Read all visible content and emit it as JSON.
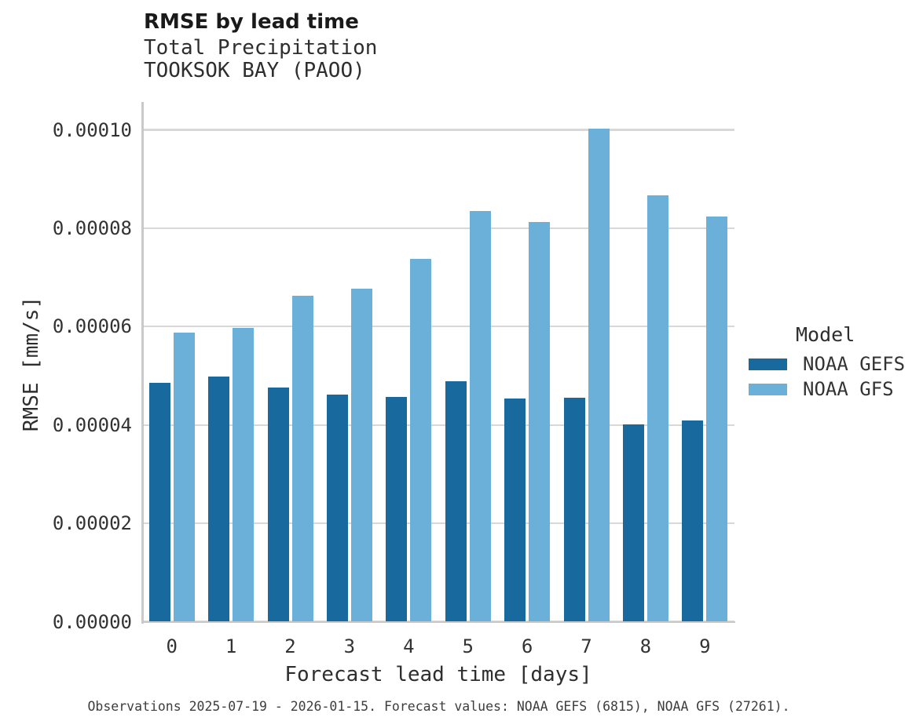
{
  "header": {
    "title": "RMSE by lead time",
    "subtitle_variable": "Total Precipitation",
    "subtitle_station": "TOOKSOK BAY (PAOO)"
  },
  "legend": {
    "title": "Model",
    "items": [
      {
        "label": "NOAA GEFS",
        "color": "#186a9e"
      },
      {
        "label": "NOAA GFS",
        "color": "#6bb0d9"
      }
    ]
  },
  "caption": "Observations 2025-07-19 - 2026-01-15. Forecast values: NOAA GEFS (6815), NOAA GFS (27261).",
  "colors": {
    "gefs_bar": "#186a9e",
    "gfs_bar": "#6bb0d9",
    "gridline": "#d8d8d8",
    "spine": "#c9c9c9",
    "title_text": "#1a1a1a",
    "text": "#333333",
    "caption_text": "#3d3d3d"
  },
  "chart_data": {
    "type": "bar",
    "title": "RMSE by lead time",
    "subtitle": [
      "Total Precipitation",
      "TOOKSOK BAY (PAOO)"
    ],
    "categories": [
      "0",
      "1",
      "2",
      "3",
      "4",
      "5",
      "6",
      "7",
      "8",
      "9"
    ],
    "series": [
      {
        "name": "NOAA GEFS",
        "color": "#186a9e",
        "values": [
          4.86e-05,
          4.99e-05,
          4.76e-05,
          4.62e-05,
          4.57e-05,
          4.89e-05,
          4.53e-05,
          4.56e-05,
          4.01e-05,
          4.09e-05
        ]
      },
      {
        "name": "NOAA GFS",
        "color": "#6bb0d9",
        "values": [
          5.87e-05,
          5.97e-05,
          6.63e-05,
          6.77e-05,
          7.38e-05,
          8.35e-05,
          8.12e-05,
          0.0001002,
          8.67e-05,
          8.23e-05
        ]
      }
    ],
    "xlabel": "Forecast lead time [days]",
    "ylabel": "RMSE [mm/s]",
    "ylim": [
      0,
      0.0001
    ],
    "yticks": [
      0,
      2e-05,
      4e-05,
      6e-05,
      8e-05,
      0.0001
    ],
    "ytick_labels": [
      "0.00000",
      "0.00002",
      "0.00004",
      "0.00006",
      "0.00008",
      "0.00010"
    ],
    "grid": true,
    "legend_title": "Model",
    "legend_position": "center-right"
  }
}
